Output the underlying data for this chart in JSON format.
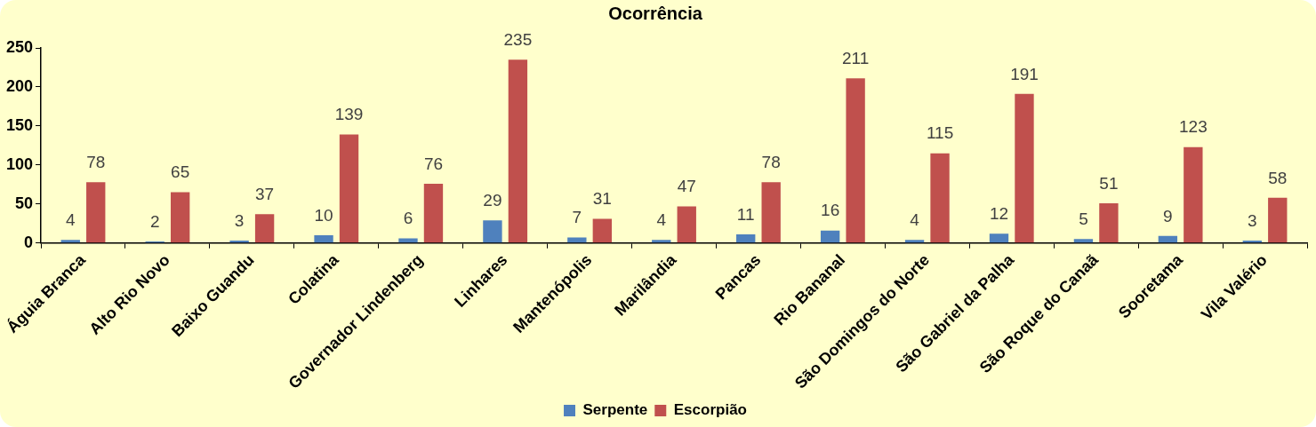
{
  "chart_data": {
    "type": "bar",
    "title": "Ocorrência",
    "categories": [
      "Águia Branca",
      "Alto Rio Novo",
      "Baixo Guandu",
      "Colatina",
      "Governador Lindenberg",
      "Linhares",
      "Mantenópolis",
      "Marilândia",
      "Pancas",
      "Rio Bananal",
      "São Domingos do Norte",
      "São Gabriel da Palha",
      "São Roque do Canaã",
      "Sooretama",
      "Vila Valério"
    ],
    "series": [
      {
        "name": "Serpente",
        "color": "#4f81bd",
        "values": [
          4,
          2,
          3,
          10,
          6,
          29,
          7,
          4,
          11,
          16,
          4,
          12,
          5,
          9,
          3
        ]
      },
      {
        "name": "Escorpião",
        "color": "#c0504d",
        "values": [
          78,
          65,
          37,
          139,
          76,
          235,
          31,
          47,
          78,
          211,
          115,
          191,
          51,
          123,
          58
        ]
      }
    ],
    "ylim": [
      0,
      250
    ],
    "yticks": [
      0,
      50,
      100,
      150,
      200,
      250
    ],
    "grid": false,
    "legend": "bottom",
    "data_labels": true
  }
}
